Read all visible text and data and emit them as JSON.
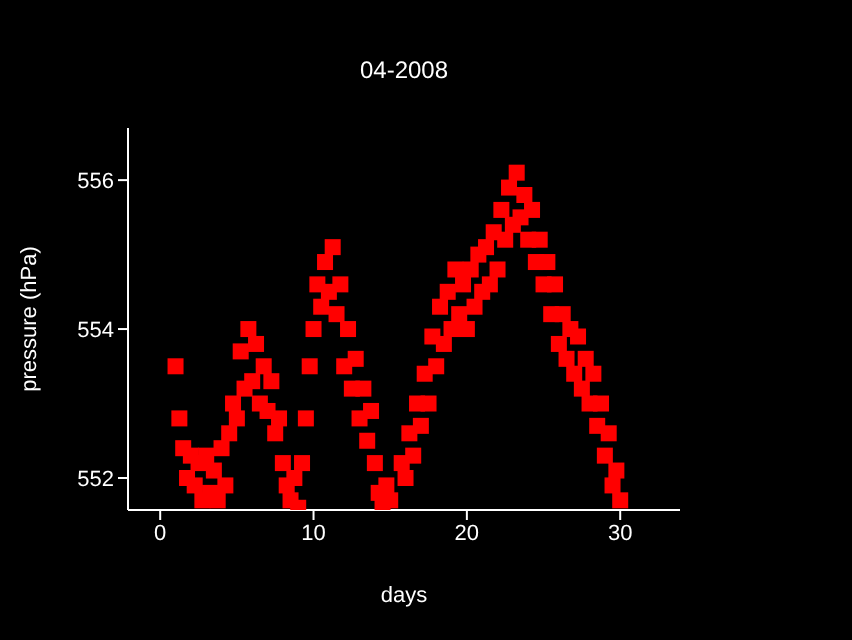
{
  "chart_data": {
    "type": "scatter",
    "title": "04-2008",
    "xlabel": "days",
    "ylabel": "pressure (hPa)",
    "x": [
      1,
      1.25,
      1.5,
      1.75,
      2,
      2.25,
      2.5,
      2.75,
      3,
      3.25,
      3.5,
      3.75,
      4,
      4.25,
      4.5,
      4.75,
      5,
      5.25,
      5.5,
      5.75,
      6,
      6.25,
      6.5,
      6.75,
      7,
      7.25,
      7.5,
      7.75,
      8,
      8.25,
      8.5,
      8.75,
      9,
      9.25,
      9.5,
      9.75,
      10,
      10.25,
      10.5,
      10.75,
      11,
      11.25,
      11.5,
      11.75,
      12,
      12.25,
      12.5,
      12.75,
      13,
      13.25,
      13.5,
      13.75,
      14,
      14.25,
      14.5,
      14.75,
      15,
      15.75,
      16,
      16.25,
      16.5,
      16.75,
      17,
      17.25,
      17.5,
      17.75,
      18,
      18.25,
      18.5,
      18.75,
      19,
      19.25,
      19.5,
      19.75,
      20,
      20.25,
      20.5,
      20.75,
      21,
      21.25,
      21.5,
      21.75,
      22,
      22.25,
      22.5,
      22.75,
      23,
      23.25,
      23.5,
      23.75,
      24,
      24.25,
      24.5,
      24.75,
      25,
      25.25,
      25.5,
      25.75,
      26,
      26.25,
      26.5,
      26.75,
      27,
      27.25,
      27.5,
      27.75,
      28,
      28.25,
      28.5,
      28.75,
      29,
      29.25,
      29.5,
      29.75,
      30
    ],
    "series": [
      {
        "color": "#ff0000",
        "values": [
          553.5,
          552.8,
          552.4,
          552.0,
          552.3,
          551.9,
          552.2,
          551.7,
          552.3,
          551.8,
          552.1,
          551.7,
          552.4,
          551.9,
          552.6,
          553.0,
          552.8,
          553.7,
          553.2,
          554.0,
          553.3,
          553.8,
          553.0,
          553.5,
          552.9,
          553.3,
          552.6,
          552.8,
          552.2,
          551.9,
          551.7,
          552.0,
          551.6,
          552.2,
          552.8,
          553.5,
          554.0,
          554.6,
          554.3,
          554.9,
          554.5,
          555.1,
          554.2,
          554.6,
          553.5,
          554.0,
          553.2,
          553.6,
          552.8,
          553.2,
          552.5,
          552.9,
          552.2,
          551.8,
          551.6,
          551.9,
          551.7,
          552.2,
          552.0,
          552.6,
          552.3,
          553.0,
          552.7,
          553.4,
          553.0,
          553.9,
          553.5,
          554.3,
          553.8,
          554.5,
          554.0,
          554.8,
          554.2,
          554.6,
          554.0,
          554.8,
          554.3,
          555.0,
          554.5,
          555.1,
          554.6,
          555.3,
          554.8,
          555.6,
          555.2,
          555.9,
          555.4,
          556.1,
          555.5,
          555.8,
          555.2,
          555.6,
          554.9,
          555.2,
          554.6,
          554.9,
          554.2,
          554.6,
          553.8,
          554.2,
          553.6,
          554.0,
          553.4,
          553.9,
          553.2,
          553.6,
          553.0,
          553.4,
          552.7,
          553.0,
          552.3,
          552.6,
          551.9,
          552.1,
          551.7
        ]
      }
    ],
    "xlim": [
      -2.1,
      33.9
    ],
    "ylim": [
      551.57,
      556.7
    ],
    "xticks": [
      0,
      10,
      20,
      30
    ],
    "yticks": [
      552,
      554,
      556
    ],
    "marker": "square",
    "grid": false,
    "legend": false
  }
}
